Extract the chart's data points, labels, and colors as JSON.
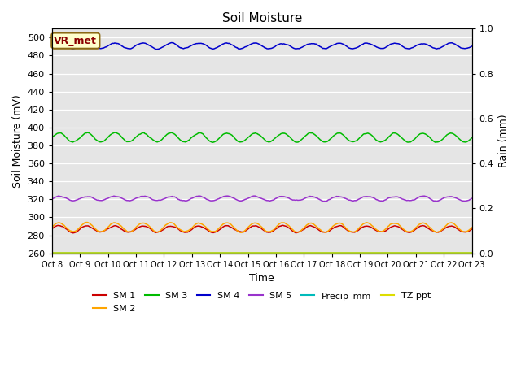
{
  "title": "Soil Moisture",
  "ylabel_left": "Soil Moisture (mV)",
  "ylabel_right": "Rain (mm)",
  "xlabel": "Time",
  "annotation_text": "VR_met",
  "annotation_color": "#8B0000",
  "annotation_bg": "#FFFFCC",
  "annotation_border": "#8B6914",
  "n_points": 720,
  "ylim_left": [
    260,
    510
  ],
  "ylim_right": [
    0.0,
    1.0
  ],
  "yticks_left": [
    260,
    280,
    300,
    320,
    340,
    360,
    380,
    400,
    420,
    440,
    460,
    480,
    500
  ],
  "yticks_right": [
    0.0,
    0.2,
    0.4,
    0.6,
    0.8,
    1.0
  ],
  "x_tick_labels": [
    "Oct 8",
    "Oct 9",
    "Oct 10",
    "Oct 11",
    "Oct 12",
    "Oct 13",
    "Oct 14",
    "Oct 15",
    "Oct 16",
    "Oct 17",
    "Oct 18",
    "Oct 19",
    "Oct 20",
    "Oct 21",
    "Oct 22",
    "Oct 23"
  ],
  "bg_color": "#E5E5E5",
  "fig_color": "#FFFFFF",
  "series": {
    "SM1": {
      "color": "#CC0000",
      "base": 287,
      "trend": -0.006,
      "amp": 3.5,
      "period_days": 1.0,
      "label": "SM 1"
    },
    "SM2": {
      "color": "#FFA500",
      "base": 289,
      "trend": -0.022,
      "amp": 5.0,
      "period_days": 1.0,
      "label": "SM 2"
    },
    "SM3": {
      "color": "#00BB00",
      "base": 389,
      "trend": -0.018,
      "amp": 5.0,
      "period_days": 1.0,
      "label": "SM 3"
    },
    "SM4": {
      "color": "#0000CC",
      "base": 491,
      "trend": -0.02,
      "amp": 3.0,
      "period_days": 1.0,
      "label": "SM 4"
    },
    "SM5": {
      "color": "#9933CC",
      "base": 321,
      "trend": -0.01,
      "amp": 2.5,
      "period_days": 1.0,
      "label": "SM 5"
    },
    "Precip_mm": {
      "color": "#00BBBB",
      "base": 261,
      "trend": 0.0,
      "amp": 0.0,
      "period_days": 1.0,
      "label": "Precip_mm"
    },
    "TZ_ppt": {
      "color": "#DDDD00",
      "base": 261,
      "trend": 0.0,
      "amp": 0.0,
      "period_days": 1.0,
      "label": "TZ ppt"
    }
  },
  "legend_order": [
    "SM1",
    "SM2",
    "SM3",
    "SM4",
    "SM5",
    "Precip_mm",
    "TZ_ppt"
  ]
}
